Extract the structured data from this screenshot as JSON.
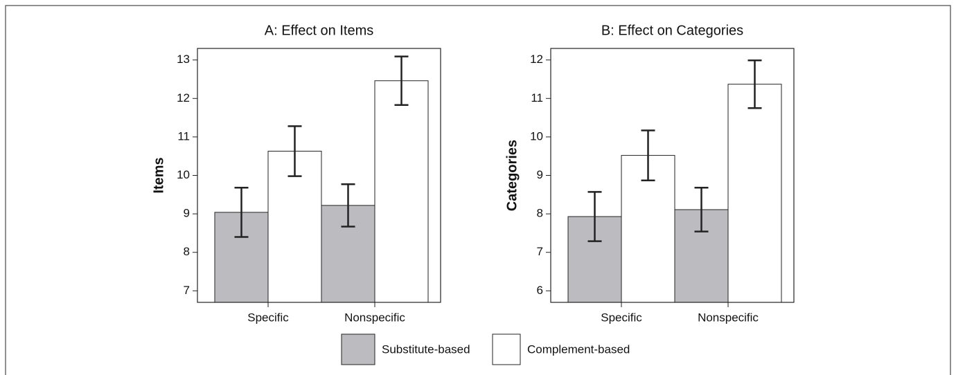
{
  "chart_data": [
    {
      "type": "bar",
      "title": "A: Effect on Items",
      "y_label": "Items",
      "categories": [
        "Specific",
        "Nonspecific"
      ],
      "series": [
        {
          "name": "Substitute-based",
          "color": "#bcbcc0",
          "values": [
            9.04,
            9.22
          ],
          "errors": [
            0.64,
            0.55
          ]
        },
        {
          "name": "Complement-based",
          "color": "#ffffff",
          "values": [
            10.63,
            12.46
          ],
          "errors": [
            0.65,
            0.63
          ]
        }
      ],
      "ylim": [
        6.7,
        13.3
      ],
      "yticks": [
        7,
        8,
        9,
        10,
        11,
        12,
        13
      ]
    },
    {
      "type": "bar",
      "title": "B: Effect on Categories",
      "y_label": "Categories",
      "categories": [
        "Specific",
        "Nonspecific"
      ],
      "series": [
        {
          "color": "#bcbcc0",
          "values": [
            7.93,
            8.11
          ],
          "errors": [
            0.64,
            0.57
          ]
        },
        {
          "color": "#ffffff",
          "values": [
            9.52,
            11.37
          ],
          "errors": [
            0.65,
            0.62
          ]
        }
      ],
      "ylim": [
        5.7,
        12.3
      ],
      "yticks": [
        6,
        7,
        8,
        9,
        10,
        11,
        12
      ]
    }
  ]
}
